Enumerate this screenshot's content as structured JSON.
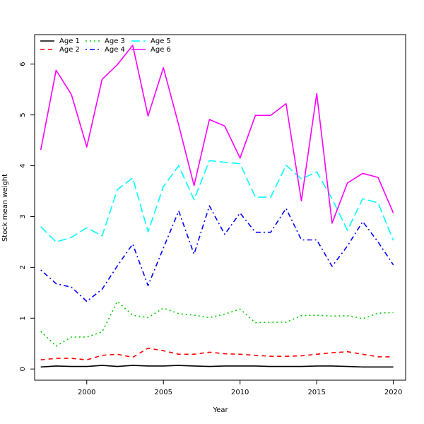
{
  "chart_data": {
    "type": "line",
    "title": "",
    "xlabel": "Year",
    "ylabel": "Stock mean weight",
    "xlim": [
      1996.6,
      2020.8
    ],
    "ylim": [
      -0.22,
      6.58
    ],
    "x_ticks": [
      2000,
      2005,
      2010,
      2015,
      2020
    ],
    "y_ticks": [
      0,
      1,
      2,
      3,
      4,
      5,
      6
    ],
    "grid": false,
    "legend_position": "top-left",
    "x": [
      1997,
      1998,
      1999,
      2000,
      2001,
      2002,
      2003,
      2004,
      2005,
      2006,
      2007,
      2008,
      2009,
      2010,
      2011,
      2012,
      2013,
      2014,
      2015,
      2016,
      2017,
      2018,
      2019,
      2020
    ],
    "series": [
      {
        "name": "Age 1",
        "color": "#000000",
        "dash": "solid",
        "values": [
          0.04,
          0.06,
          0.05,
          0.05,
          0.07,
          0.05,
          0.07,
          0.06,
          0.06,
          0.07,
          0.06,
          0.05,
          0.06,
          0.06,
          0.06,
          0.05,
          0.05,
          0.05,
          0.06,
          0.06,
          0.05,
          0.04,
          0.04,
          0.04
        ]
      },
      {
        "name": "Age 2",
        "color": "#ff0000",
        "dash": "dashed",
        "values": [
          0.18,
          0.21,
          0.21,
          0.18,
          0.27,
          0.29,
          0.23,
          0.41,
          0.36,
          0.29,
          0.29,
          0.33,
          0.3,
          0.29,
          0.27,
          0.25,
          0.25,
          0.26,
          0.29,
          0.32,
          0.34,
          0.29,
          0.24,
          0.24
        ]
      },
      {
        "name": "Age 3",
        "color": "#00cd00",
        "dash": "dotted",
        "values": [
          0.74,
          0.45,
          0.63,
          0.63,
          0.73,
          1.33,
          1.06,
          1.01,
          1.2,
          1.09,
          1.06,
          1.01,
          1.08,
          1.18,
          0.91,
          0.92,
          0.92,
          1.05,
          1.06,
          1.04,
          1.05,
          0.99,
          1.1,
          1.11
        ]
      },
      {
        "name": "Age 4",
        "color": "#0000ff",
        "dash": "dotdash",
        "values": [
          1.95,
          1.68,
          1.61,
          1.33,
          1.57,
          2.03,
          2.46,
          1.64,
          2.38,
          3.11,
          2.26,
          3.21,
          2.65,
          3.07,
          2.69,
          2.69,
          3.16,
          2.54,
          2.54,
          2.02,
          2.42,
          2.9,
          2.5,
          2.05
        ]
      },
      {
        "name": "Age 5",
        "color": "#00ffff",
        "dash": "longdash",
        "values": [
          2.8,
          2.5,
          2.59,
          2.78,
          2.62,
          3.53,
          3.76,
          2.7,
          3.59,
          4.0,
          3.33,
          4.1,
          4.07,
          4.04,
          3.38,
          3.38,
          4.01,
          3.74,
          3.88,
          3.35,
          2.73,
          3.35,
          3.27,
          2.53
        ]
      },
      {
        "name": "Age 6",
        "color": "#ff00ff",
        "dash": "solid",
        "values": [
          4.31,
          5.88,
          5.4,
          4.37,
          5.7,
          5.99,
          6.37,
          4.98,
          5.93,
          4.8,
          3.61,
          4.91,
          4.78,
          4.15,
          4.99,
          4.99,
          5.22,
          3.31,
          5.42,
          2.87,
          3.66,
          3.85,
          3.77,
          3.07
        ]
      }
    ]
  }
}
